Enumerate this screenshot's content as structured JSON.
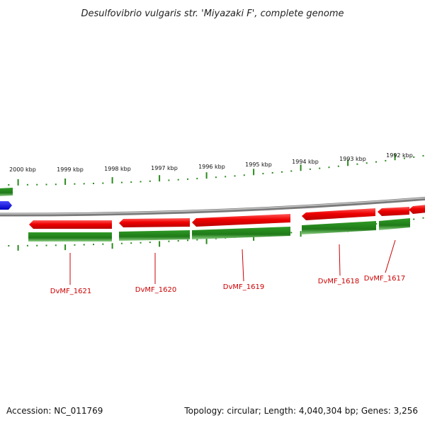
{
  "title": "Desulfovibrio vulgaris str. 'Miyazaki F', complete genome",
  "footer": {
    "accession": "Accession: NC_011769",
    "summary": "Topology: circular; Length: 4,040,304 bp; Genes: 3,256"
  },
  "ruler_labels": [
    "2000 kbp",
    "1999 kbp",
    "1998 kbp",
    "1997 kbp",
    "1996 kbp",
    "1995 kbp",
    "1994 kbp",
    "1993 kbp",
    "1992 kbp"
  ],
  "genes": [
    {
      "name": "DvMF_1621"
    },
    {
      "name": "DvMF_1620"
    },
    {
      "name": "DvMF_1619"
    },
    {
      "name": "DvMF_1618"
    },
    {
      "name": "DvMF_1617"
    }
  ],
  "colors": {
    "forward": "#e00000",
    "reverse": "#2a8a1e",
    "backbone": "#8c8c8c",
    "other_feature": "#0000ee",
    "tick": "#2a8a1e",
    "gene_label": "#cc0000"
  }
}
